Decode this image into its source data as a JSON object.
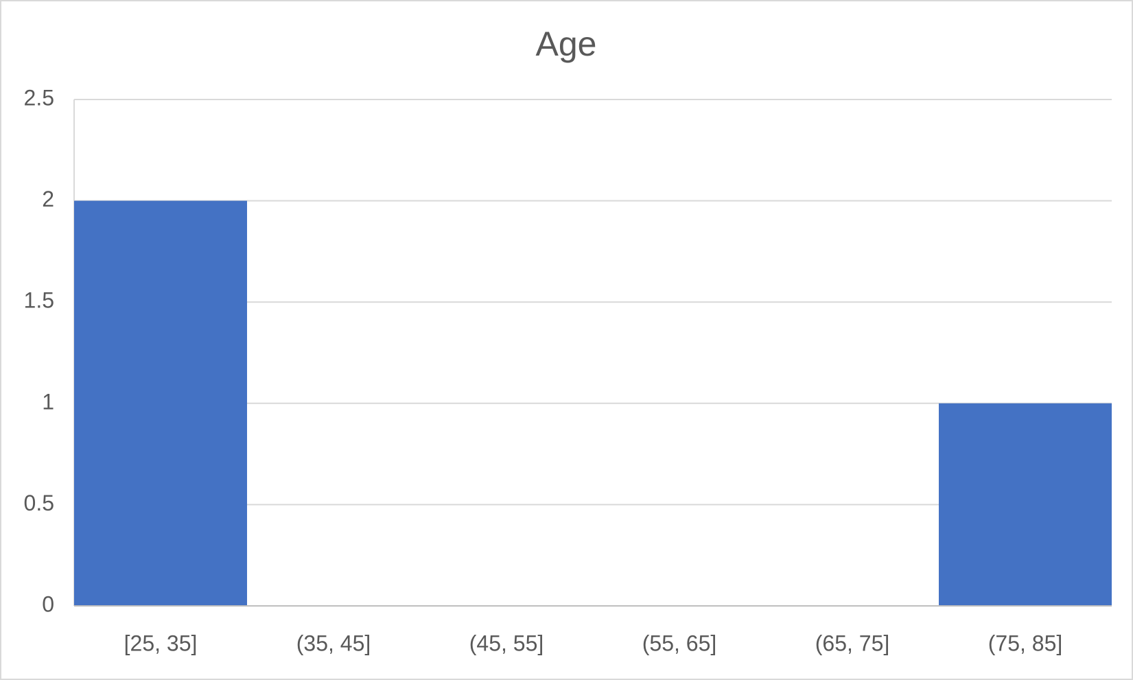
{
  "chart_data": {
    "type": "bar",
    "title": "Age",
    "categories": [
      "[25, 35]",
      "(35, 45]",
      "(45, 55]",
      "(55, 65]",
      "(65, 75]",
      "(75, 85]"
    ],
    "values": [
      2,
      0,
      0,
      0,
      0,
      1
    ],
    "color": "#4472c4",
    "ylim": [
      0,
      2.5
    ],
    "yticks": [
      0,
      0.5,
      1,
      1.5,
      2,
      2.5
    ],
    "grid": true
  }
}
